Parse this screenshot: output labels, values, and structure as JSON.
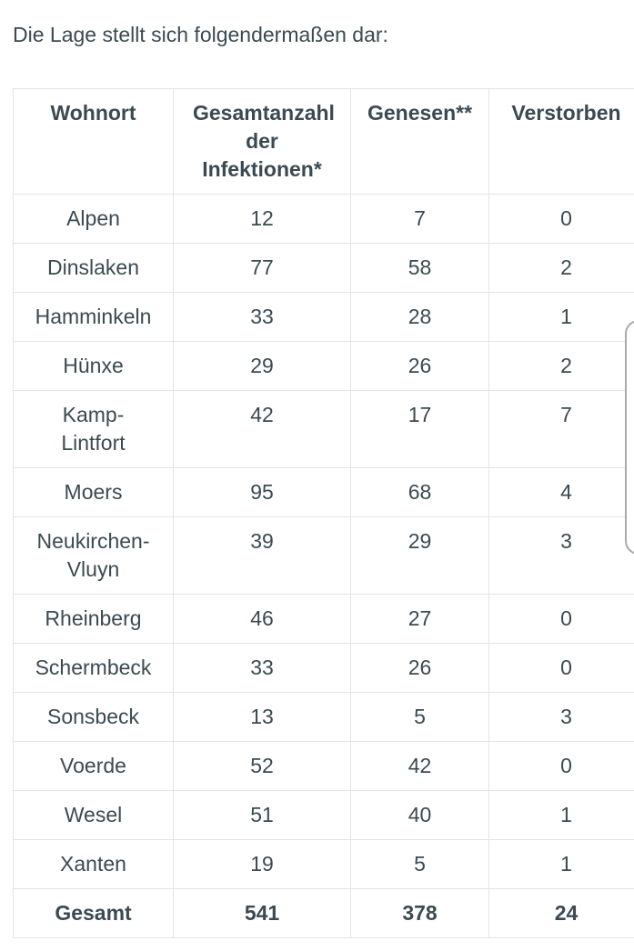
{
  "page": {
    "intro_text": "Die Lage stellt sich folgendermaßen dar:"
  },
  "table": {
    "columns": [
      "Wohnort",
      "Gesamtanzahl der Infektionen*",
      "Genesen**",
      "Verstorben"
    ],
    "rows": [
      {
        "wohnort": "Alpen",
        "infektionen": "12",
        "genesen": "7",
        "verstorben": "0"
      },
      {
        "wohnort": "Dinslaken",
        "infektionen": "77",
        "genesen": "58",
        "verstorben": "2"
      },
      {
        "wohnort": "Hamminkeln",
        "infektionen": "33",
        "genesen": "28",
        "verstorben": "1"
      },
      {
        "wohnort": "Hünxe",
        "infektionen": "29",
        "genesen": "26",
        "verstorben": "2"
      },
      {
        "wohnort": "Kamp-Lintfort",
        "infektionen": "42",
        "genesen": "17",
        "verstorben": "7"
      },
      {
        "wohnort": "Moers",
        "infektionen": "95",
        "genesen": "68",
        "verstorben": "4"
      },
      {
        "wohnort": "Neukirchen-Vluyn",
        "infektionen": "39",
        "genesen": "29",
        "verstorben": "3"
      },
      {
        "wohnort": "Rheinberg",
        "infektionen": "46",
        "genesen": "27",
        "verstorben": "0"
      },
      {
        "wohnort": "Schermbeck",
        "infektionen": "33",
        "genesen": "26",
        "verstorben": "0"
      },
      {
        "wohnort": "Sonsbeck",
        "infektionen": "13",
        "genesen": "5",
        "verstorben": "3"
      },
      {
        "wohnort": "Voerde",
        "infektionen": "52",
        "genesen": "42",
        "verstorben": "0"
      },
      {
        "wohnort": "Wesel",
        "infektionen": "51",
        "genesen": "40",
        "verstorben": "1"
      },
      {
        "wohnort": "Xanten",
        "infektionen": "19",
        "genesen": "5",
        "verstorben": "1"
      }
    ],
    "total_row": {
      "wohnort": "Gesamt",
      "infektionen": "541",
      "genesen": "378",
      "verstorben": "24"
    }
  },
  "chart_data": {
    "type": "table",
    "title": "Die Lage stellt sich folgendermaßen dar:",
    "columns": [
      "Wohnort",
      "Gesamtanzahl der Infektionen*",
      "Genesen**",
      "Verstorben"
    ],
    "categories": [
      "Alpen",
      "Dinslaken",
      "Hamminkeln",
      "Hünxe",
      "Kamp-Lintfort",
      "Moers",
      "Neukirchen-Vluyn",
      "Rheinberg",
      "Schermbeck",
      "Sonsbeck",
      "Voerde",
      "Wesel",
      "Xanten",
      "Gesamt"
    ],
    "series": [
      {
        "name": "Gesamtanzahl der Infektionen*",
        "values": [
          12,
          77,
          33,
          29,
          42,
          95,
          39,
          46,
          33,
          13,
          52,
          51,
          19,
          541
        ]
      },
      {
        "name": "Genesen**",
        "values": [
          7,
          58,
          28,
          26,
          17,
          68,
          29,
          27,
          26,
          5,
          42,
          40,
          5,
          378
        ]
      },
      {
        "name": "Verstorben",
        "values": [
          0,
          2,
          1,
          2,
          7,
          4,
          3,
          0,
          0,
          3,
          0,
          1,
          1,
          24
        ]
      }
    ]
  },
  "colors": {
    "text": "#3b4a52",
    "border": "#e5e5e5",
    "background": "#ffffff",
    "scrollbar_border": "#a9a9a9"
  }
}
